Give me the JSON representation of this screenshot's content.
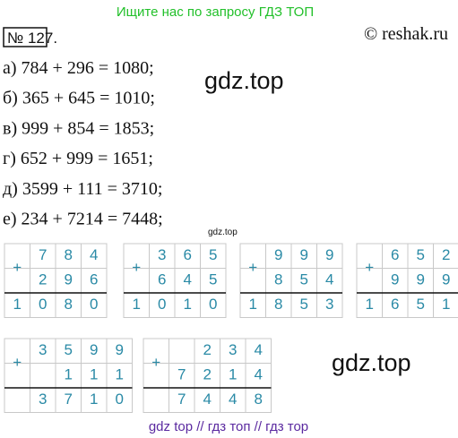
{
  "header": {
    "search_hint": "Ищите нас по запросу ГДЗ ТОП",
    "number": "№ 127.",
    "copyright": "© reshak.ru"
  },
  "equations": [
    "а) 784 + 296 = 1080;",
    "б) 365 + 645 = 1010;",
    "в) 999 + 854 = 1853;",
    "г) 652 + 999 = 1651;",
    "д) 3599 + 111 = 3710;",
    "е) 234 + 7214 = 7448;"
  ],
  "watermarks": [
    "gdz.top",
    "gdz.top",
    "gdz.top"
  ],
  "columns": [
    {
      "sign": "+",
      "addends": [
        [
          "7",
          "8",
          "4"
        ],
        [
          "2",
          "9",
          "6"
        ]
      ],
      "sum": [
        "1",
        "0",
        "8",
        "0"
      ]
    },
    {
      "sign": "+",
      "addends": [
        [
          "3",
          "6",
          "5"
        ],
        [
          "6",
          "4",
          "5"
        ]
      ],
      "sum": [
        "1",
        "0",
        "1",
        "0"
      ]
    },
    {
      "sign": "+",
      "addends": [
        [
          "9",
          "9",
          "9"
        ],
        [
          "8",
          "5",
          "4"
        ]
      ],
      "sum": [
        "1",
        "8",
        "5",
        "3"
      ]
    },
    {
      "sign": "+",
      "addends": [
        [
          "6",
          "5",
          "2"
        ],
        [
          "9",
          "9",
          "9"
        ]
      ],
      "sum": [
        "1",
        "6",
        "5",
        "1"
      ]
    },
    {
      "sign": "+",
      "addends": [
        [
          "3",
          "5",
          "9",
          "9"
        ],
        [
          "1",
          "1",
          "1"
        ]
      ],
      "sum": [
        "3",
        "7",
        "1",
        "0"
      ]
    },
    {
      "sign": "+",
      "addends": [
        [
          "2",
          "3",
          "4"
        ],
        [
          "7",
          "2",
          "1",
          "4"
        ]
      ],
      "sum": [
        "7",
        "4",
        "4",
        "8"
      ]
    }
  ],
  "footer": "gdz top // гдз топ // гдз тор"
}
